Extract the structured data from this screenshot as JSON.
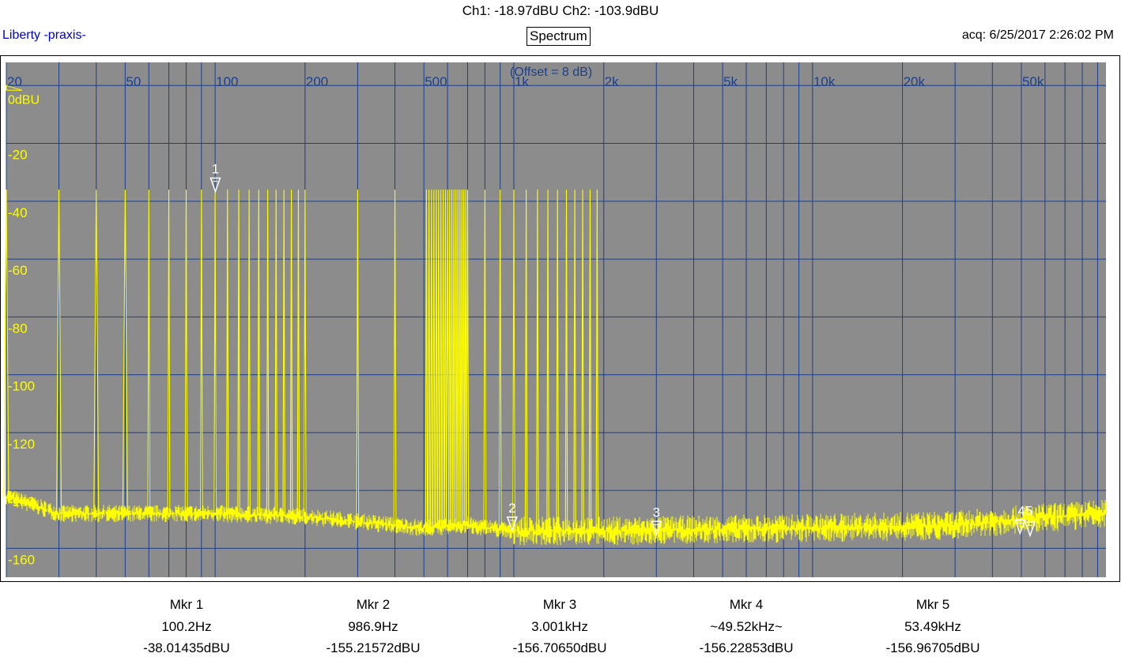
{
  "header": {
    "channels": "Ch1: -18.97dBU  Ch2: -103.9dBU",
    "app_name": "Liberty -praxis-",
    "mode": "Spectrum",
    "acquired": "acq: 6/25/2017 2:26:02 PM"
  },
  "colors": {
    "plot_bg": "#8c8c8c",
    "grid": "#1c3f8c",
    "trace": "#ffff00",
    "label": "#ffff00",
    "freq_label": "#1c3f8c",
    "app_name": "#0000cc"
  },
  "chart_data": {
    "type": "line",
    "x_scale": "log",
    "xlim": [
      20,
      96000
    ],
    "ylim": [
      -170,
      8
    ],
    "offset_note": "(Offset = 8 dB)",
    "zero_label": "0dBU",
    "x_tick_labels": [
      {
        "value": 20,
        "label": "20"
      },
      {
        "value": 50,
        "label": "50"
      },
      {
        "value": 100,
        "label": "100"
      },
      {
        "value": 200,
        "label": "200"
      },
      {
        "value": 500,
        "label": "500"
      },
      {
        "value": 1000,
        "label": "1k"
      },
      {
        "value": 2000,
        "label": "2k"
      },
      {
        "value": 5000,
        "label": "5k"
      },
      {
        "value": 10000,
        "label": "10k"
      },
      {
        "value": 20000,
        "label": "20k"
      },
      {
        "value": 50000,
        "label": "50k"
      }
    ],
    "y_tick_labels": [
      {
        "value": -20,
        "label": "-20"
      },
      {
        "value": -40,
        "label": "-40"
      },
      {
        "value": -60,
        "label": "-60"
      },
      {
        "value": -80,
        "label": "-80"
      },
      {
        "value": -100,
        "label": "-100"
      },
      {
        "value": -120,
        "label": "-120"
      },
      {
        "value": -140,
        "label": "-140"
      },
      {
        "value": -160,
        "label": "-160"
      }
    ],
    "y_grid": [
      0,
      -20,
      -40,
      -60,
      -80,
      -100,
      -120,
      -140,
      -160
    ],
    "series": [
      {
        "peak_level": -36,
        "peaks_hz": [
          20,
          30,
          40,
          50,
          60,
          70,
          80,
          90,
          100,
          110,
          120,
          130,
          140,
          150,
          160,
          170,
          180,
          190,
          200,
          300,
          400,
          510,
          520,
          530,
          540,
          550,
          560,
          570,
          580,
          590,
          600,
          610,
          620,
          630,
          640,
          650,
          660,
          670,
          680,
          690,
          700,
          800,
          900,
          1000,
          1100,
          1200,
          1300,
          1400,
          1500,
          1600,
          1700,
          1800,
          1900
        ],
        "noise_floor": [
          [
            20,
            -142
          ],
          [
            30,
            -148
          ],
          [
            100,
            -148
          ],
          [
            200,
            -149
          ],
          [
            500,
            -153
          ],
          [
            700,
            -152
          ],
          [
            1000,
            -154
          ],
          [
            2000,
            -154
          ],
          [
            10000,
            -153
          ],
          [
            30000,
            -152
          ],
          [
            50000,
            -150
          ],
          [
            96000,
            -148
          ]
        ]
      }
    ],
    "markers": [
      {
        "label": "1",
        "freq_hz": 100.2,
        "level": -38.01435
      },
      {
        "label": "2",
        "freq_hz": 986.9,
        "level": -155.21572
      },
      {
        "label": "3",
        "freq_hz": 3001,
        "level": -156.7065
      },
      {
        "label": "4",
        "freq_hz": 49520,
        "level": -156.22853
      },
      {
        "label": "5",
        "freq_hz": 53490,
        "level": -156.96705
      }
    ],
    "marker_cluster_label": "45"
  },
  "readouts": [
    {
      "title": "Mkr 1",
      "freq": "100.2Hz",
      "level": "-38.01435dBU"
    },
    {
      "title": "Mkr 2",
      "freq": "986.9Hz",
      "level": "-155.21572dBU"
    },
    {
      "title": "Mkr 3",
      "freq": "3.001kHz",
      "level": "-156.70650dBU"
    },
    {
      "title": "Mkr 4",
      "freq": "~49.52kHz~",
      "level": "-156.22853dBU"
    },
    {
      "title": "Mkr 5",
      "freq": "53.49kHz",
      "level": "-156.96705dBU"
    }
  ]
}
